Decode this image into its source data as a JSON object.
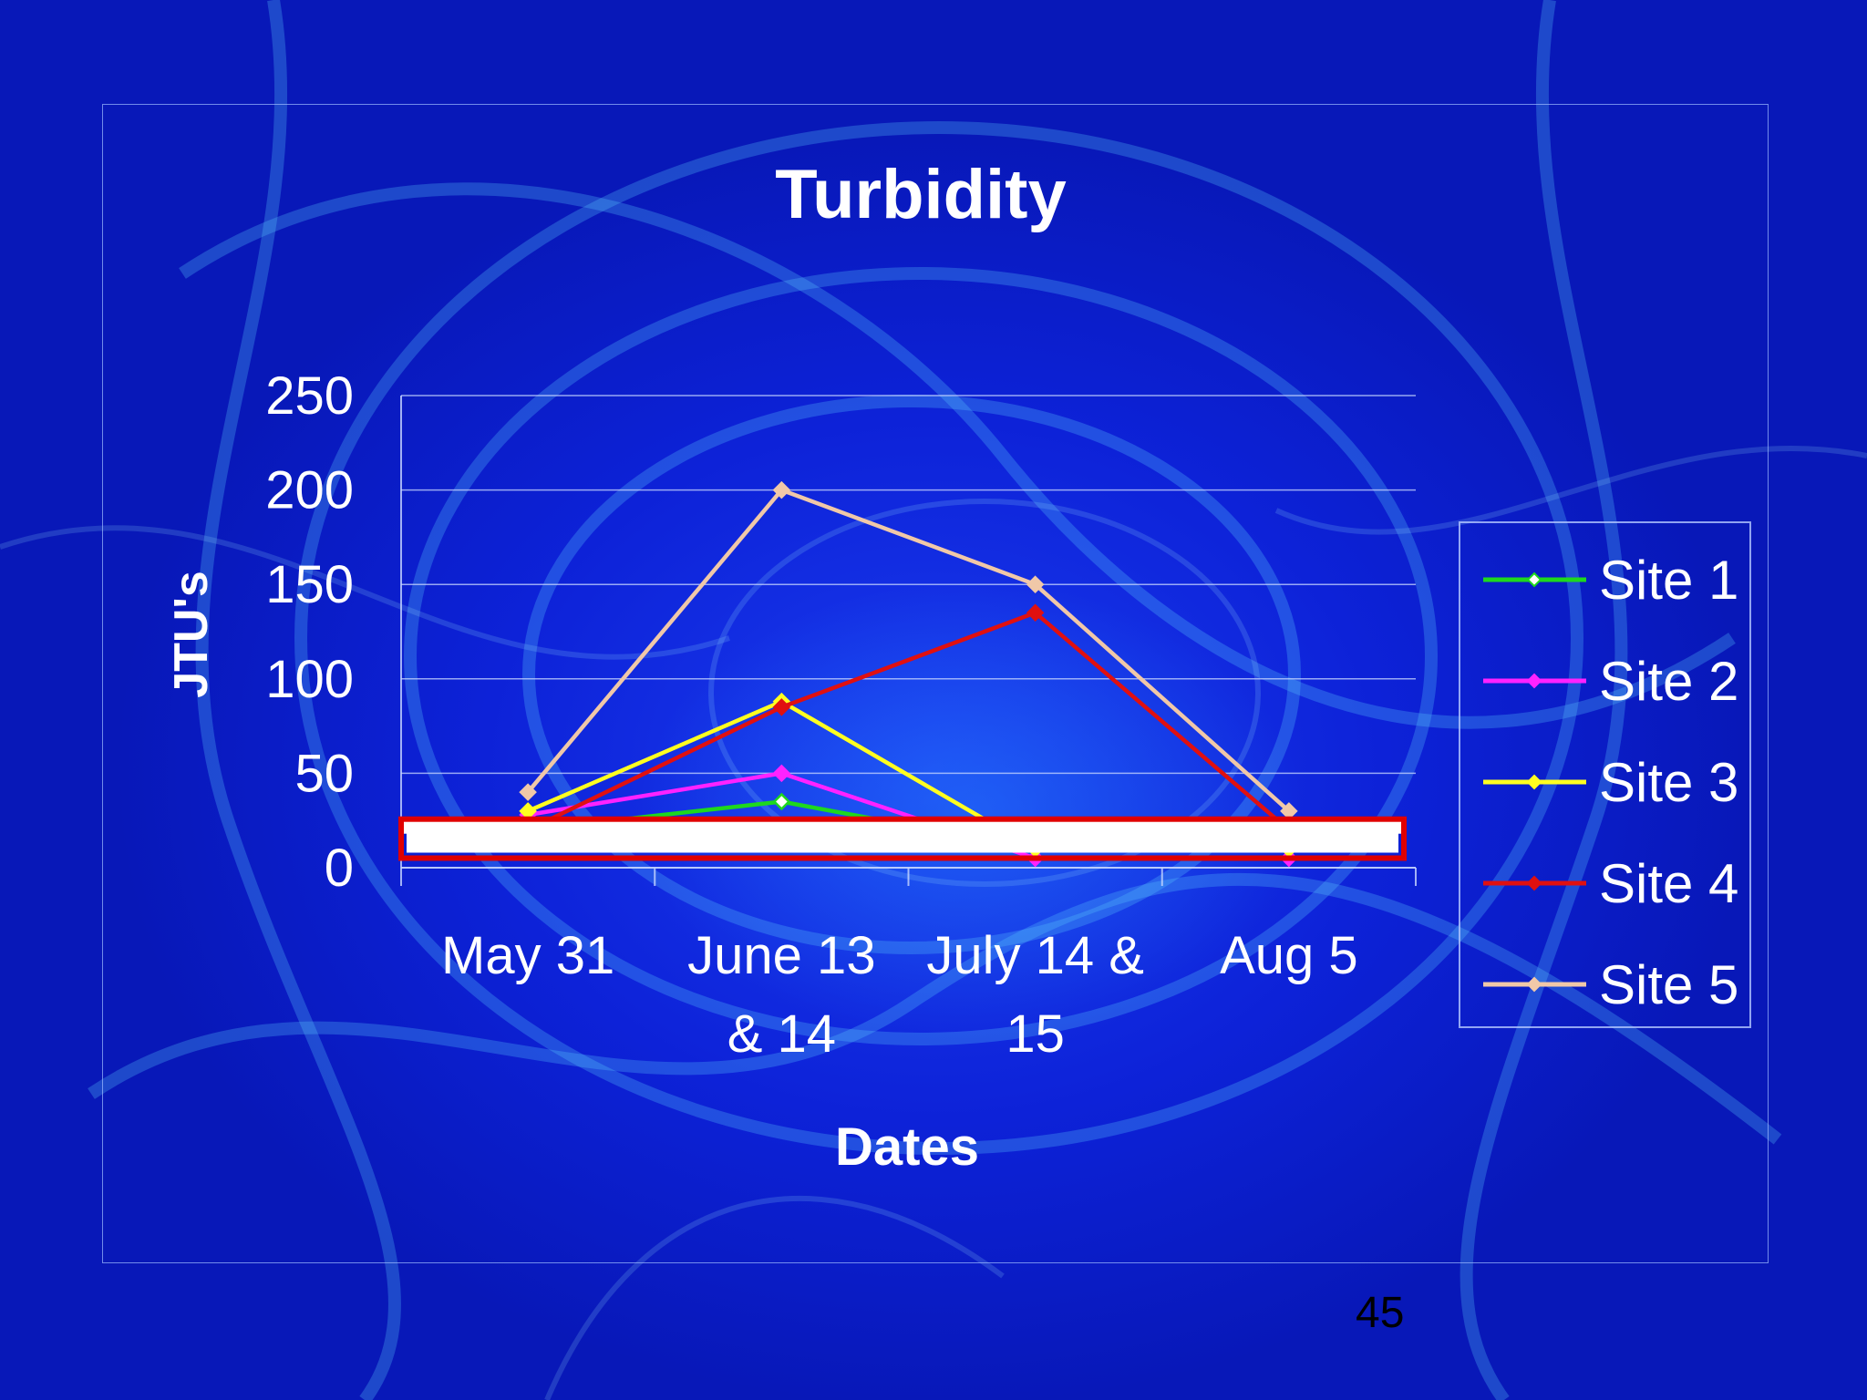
{
  "slide": {
    "page_number": "45"
  },
  "chart_data": {
    "type": "line",
    "title": "Turbidity",
    "xlabel": "Dates",
    "ylabel": "JTU's",
    "categories": [
      [
        "May 31"
      ],
      [
        "June 13",
        "& 14"
      ],
      [
        "July 14 &",
        "15"
      ],
      [
        "Aug 5"
      ]
    ],
    "ylim": [
      0,
      250
    ],
    "yticks": [
      "0",
      "50",
      "100",
      "150",
      "200",
      "250"
    ],
    "grid": true,
    "legend": "right",
    "series": [
      {
        "name": "Site 1",
        "values": [
          20,
          35,
          10,
          10
        ],
        "color": "#1ed81e",
        "marker_fill": "#ffffff"
      },
      {
        "name": "Site 2",
        "values": [
          28,
          50,
          5,
          5
        ],
        "color": "#ff22ff",
        "marker_fill": "#ff22ff"
      },
      {
        "name": "Site 3",
        "values": [
          30,
          88,
          10,
          10
        ],
        "color": "#ffff20",
        "marker_fill": "#ffff20"
      },
      {
        "name": "Site 4",
        "values": [
          20,
          85,
          135,
          20
        ],
        "color": "#e01010",
        "marker_fill": "#e01010"
      },
      {
        "name": "Site 5",
        "values": [
          40,
          200,
          150,
          30
        ],
        "color": "#f0c8a8",
        "marker_fill": "#f0c8a8"
      }
    ],
    "highlight": {
      "color": "#e00000"
    }
  }
}
